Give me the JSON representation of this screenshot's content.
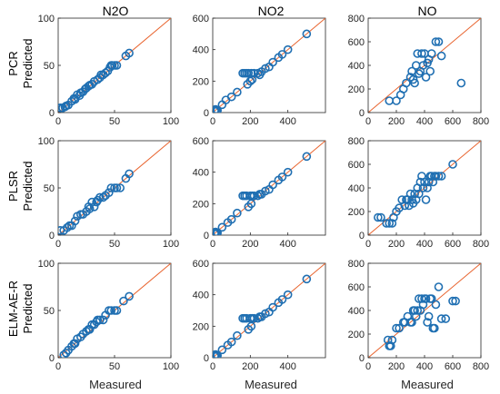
{
  "colors": {
    "marker": "#1f6fb2",
    "diagonal": "#e8622c",
    "axis": "#262626"
  },
  "col_titles": [
    "N2O",
    "NO2",
    "NO"
  ],
  "row_labels": [
    "PCR",
    "PLSR",
    "ELM-AE-R"
  ],
  "ylabel": "Predicted",
  "xlabel": "Measured",
  "chart_data": [
    {
      "type": "scatter",
      "row": 0,
      "col": 0,
      "xlim": [
        0,
        100
      ],
      "ylim": [
        0,
        100
      ],
      "xticks": [
        0,
        50,
        100
      ],
      "yticks": [
        0,
        50,
        100
      ],
      "x": [
        2,
        4,
        6,
        7,
        9,
        12,
        14,
        15,
        17,
        19,
        20,
        22,
        24,
        25,
        27,
        28,
        30,
        32,
        35,
        37,
        38,
        40,
        42,
        44,
        46,
        47,
        48,
        50,
        52,
        60,
        63
      ],
      "y": [
        5,
        5,
        6,
        7,
        8,
        12,
        15,
        14,
        19,
        18,
        21,
        22,
        25,
        26,
        28,
        29,
        30,
        33,
        35,
        37,
        40,
        40,
        42,
        44,
        48,
        50,
        50,
        50,
        50,
        60,
        63
      ]
    },
    {
      "type": "scatter",
      "row": 0,
      "col": 1,
      "xlim": [
        0,
        600
      ],
      "ylim": [
        0,
        600
      ],
      "xticks": [
        0,
        200,
        400
      ],
      "yticks": [
        0,
        200,
        400,
        600
      ],
      "x": [
        10,
        15,
        20,
        25,
        50,
        70,
        100,
        130,
        160,
        170,
        180,
        185,
        190,
        200,
        205,
        210,
        220,
        240,
        250,
        260,
        280,
        300,
        320,
        350,
        370,
        400,
        500
      ],
      "y": [
        10,
        20,
        10,
        15,
        50,
        80,
        100,
        130,
        250,
        250,
        250,
        180,
        250,
        200,
        250,
        210,
        250,
        250,
        240,
        260,
        280,
        290,
        320,
        350,
        370,
        400,
        500
      ]
    },
    {
      "type": "scatter",
      "row": 0,
      "col": 2,
      "xlim": [
        0,
        800
      ],
      "ylim": [
        0,
        800
      ],
      "xticks": [
        0,
        200,
        400,
        600,
        800
      ],
      "yticks": [
        0,
        200,
        400,
        600,
        800
      ],
      "x": [
        150,
        200,
        230,
        250,
        270,
        300,
        310,
        320,
        330,
        340,
        350,
        360,
        370,
        380,
        390,
        400,
        410,
        420,
        430,
        440,
        450,
        480,
        500,
        520,
        660
      ],
      "y": [
        100,
        100,
        150,
        200,
        250,
        300,
        350,
        280,
        250,
        400,
        500,
        330,
        350,
        500,
        400,
        500,
        300,
        420,
        450,
        350,
        500,
        600,
        600,
        480,
        250
      ]
    },
    {
      "type": "scatter",
      "row": 1,
      "col": 0,
      "xlim": [
        0,
        100
      ],
      "ylim": [
        0,
        100
      ],
      "xticks": [
        0,
        50,
        100
      ],
      "yticks": [
        0,
        50,
        100
      ],
      "x": [
        2,
        5,
        8,
        10,
        12,
        15,
        17,
        20,
        22,
        25,
        27,
        28,
        30,
        32,
        34,
        35,
        37,
        40,
        42,
        45,
        47,
        50,
        52,
        55,
        60,
        63
      ],
      "y": [
        5,
        5,
        8,
        10,
        10,
        15,
        20,
        22,
        22,
        25,
        30,
        28,
        35,
        30,
        35,
        37,
        40,
        40,
        42,
        45,
        50,
        50,
        50,
        50,
        60,
        65
      ]
    },
    {
      "type": "scatter",
      "row": 1,
      "col": 1,
      "xlim": [
        0,
        600
      ],
      "ylim": [
        0,
        600
      ],
      "xticks": [
        0,
        200,
        400
      ],
      "yticks": [
        0,
        200,
        400,
        600
      ],
      "x": [
        10,
        15,
        20,
        25,
        50,
        80,
        100,
        130,
        160,
        170,
        180,
        190,
        200,
        205,
        210,
        220,
        240,
        250,
        260,
        280,
        300,
        320,
        350,
        370,
        400,
        500
      ],
      "y": [
        10,
        20,
        10,
        15,
        50,
        80,
        100,
        140,
        250,
        250,
        250,
        180,
        250,
        200,
        250,
        250,
        250,
        260,
        260,
        280,
        290,
        320,
        350,
        370,
        400,
        500
      ]
    },
    {
      "type": "scatter",
      "row": 1,
      "col": 2,
      "xlim": [
        0,
        800
      ],
      "ylim": [
        0,
        800
      ],
      "xticks": [
        0,
        200,
        400,
        600,
        800
      ],
      "yticks": [
        0,
        200,
        400,
        600,
        800
      ],
      "x": [
        70,
        90,
        130,
        150,
        170,
        180,
        200,
        220,
        240,
        260,
        270,
        280,
        290,
        300,
        310,
        320,
        330,
        340,
        350,
        360,
        370,
        380,
        390,
        400,
        410,
        420,
        430,
        440,
        450,
        460,
        470,
        480,
        500,
        520,
        600
      ],
      "y": [
        150,
        150,
        100,
        100,
        100,
        150,
        200,
        230,
        300,
        250,
        300,
        300,
        250,
        350,
        300,
        270,
        350,
        300,
        400,
        350,
        450,
        500,
        400,
        450,
        300,
        400,
        450,
        500,
        500,
        450,
        500,
        500,
        500,
        500,
        600
      ]
    },
    {
      "type": "scatter",
      "row": 2,
      "col": 0,
      "xlim": [
        0,
        100
      ],
      "ylim": [
        0,
        100
      ],
      "xticks": [
        0,
        50,
        100
      ],
      "yticks": [
        0,
        50,
        100
      ],
      "x": [
        5,
        7,
        9,
        12,
        14,
        15,
        17,
        20,
        22,
        25,
        27,
        28,
        30,
        32,
        34,
        35,
        37,
        40,
        42,
        45,
        47,
        50,
        52,
        58,
        63
      ],
      "y": [
        3,
        5,
        8,
        12,
        15,
        15,
        20,
        22,
        25,
        28,
        30,
        30,
        35,
        35,
        38,
        40,
        40,
        40,
        45,
        50,
        50,
        50,
        50,
        60,
        65
      ]
    },
    {
      "type": "scatter",
      "row": 2,
      "col": 1,
      "xlim": [
        0,
        600
      ],
      "ylim": [
        0,
        600
      ],
      "xticks": [
        0,
        200,
        400
      ],
      "yticks": [
        0,
        200,
        400,
        600
      ],
      "x": [
        10,
        15,
        20,
        25,
        50,
        80,
        100,
        130,
        160,
        170,
        180,
        190,
        200,
        205,
        210,
        220,
        240,
        250,
        260,
        280,
        300,
        320,
        350,
        370,
        400,
        500
      ],
      "y": [
        10,
        20,
        10,
        15,
        50,
        80,
        100,
        140,
        250,
        250,
        250,
        180,
        250,
        200,
        250,
        250,
        250,
        260,
        260,
        280,
        290,
        320,
        350,
        370,
        400,
        500
      ]
    },
    {
      "type": "scatter",
      "row": 2,
      "col": 2,
      "xlim": [
        0,
        800
      ],
      "ylim": [
        0,
        800
      ],
      "xticks": [
        0,
        200,
        400,
        600,
        800
      ],
      "yticks": [
        0,
        200,
        400,
        600,
        800
      ],
      "x": [
        140,
        150,
        160,
        170,
        200,
        220,
        250,
        260,
        280,
        300,
        310,
        320,
        330,
        340,
        350,
        360,
        370,
        380,
        390,
        400,
        410,
        420,
        430,
        440,
        450,
        460,
        470,
        480,
        500,
        520,
        550,
        600,
        620
      ],
      "y": [
        150,
        100,
        100,
        150,
        250,
        250,
        300,
        300,
        350,
        300,
        300,
        400,
        400,
        350,
        400,
        500,
        400,
        500,
        450,
        500,
        500,
        300,
        350,
        500,
        500,
        250,
        250,
        450,
        600,
        330,
        330,
        480,
        480
      ]
    }
  ]
}
